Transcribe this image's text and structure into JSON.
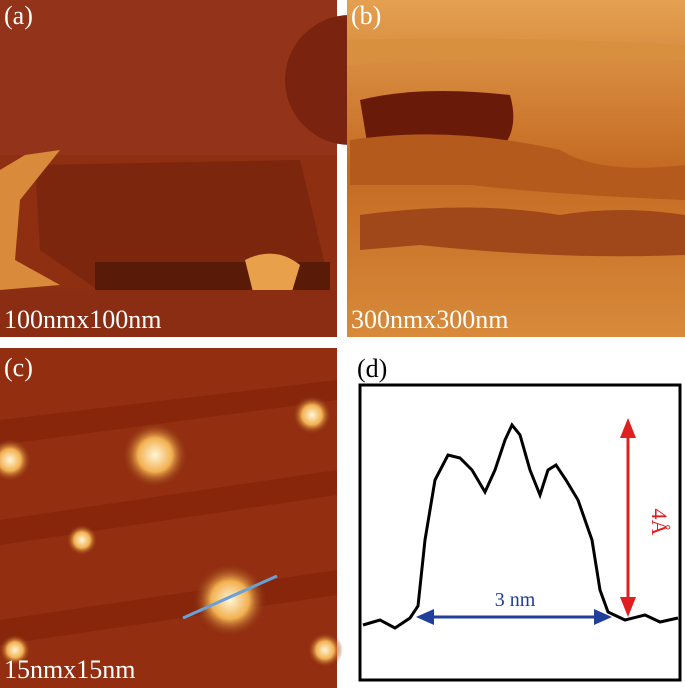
{
  "panels": [
    {
      "label": "(a)",
      "scale": "100nmx100nm"
    },
    {
      "label": "(b)",
      "scale": "300nmx300nm"
    },
    {
      "label": "(c)",
      "scale": "15nmx15nm"
    }
  ],
  "profile": {
    "label": "(d)",
    "width_label": "3 nm",
    "height_label": "4Å"
  }
}
